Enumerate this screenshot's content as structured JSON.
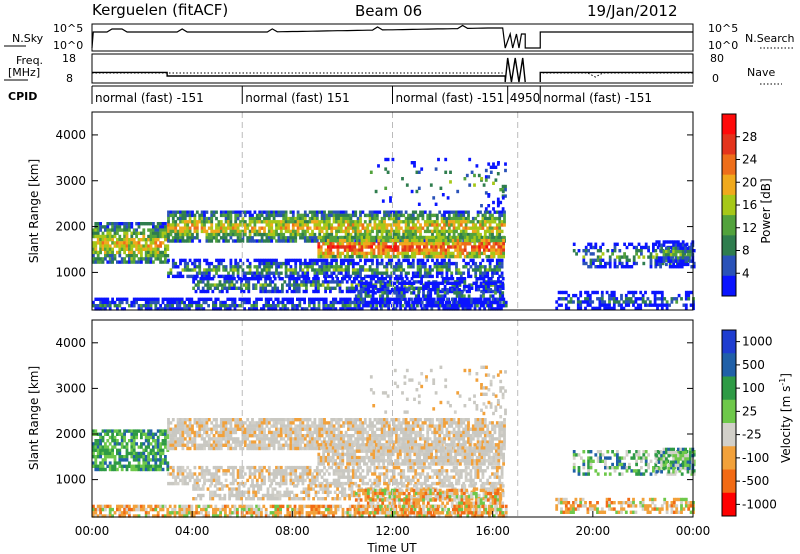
{
  "header": {
    "station": "Kerguelen (fitACF)",
    "beam": "Beam 06",
    "date": "19/Jan/2012"
  },
  "top_panels": {
    "nsky_label": "N.Sky",
    "nsky_ticks": [
      "10^5",
      "10^0"
    ],
    "nsearch_label": "N.Search",
    "nsearch_ticks": [
      "10^5",
      "10^0"
    ],
    "freq_label_line1": "Freq.",
    "freq_label_line2": "[MHz]",
    "freq_ticks": [
      "18",
      "8"
    ],
    "nave_label": "Nave",
    "nave_ticks": [
      "80",
      "0"
    ],
    "cpid_label": "CPID",
    "cpid_segments": [
      {
        "start": 0.0,
        "end": 6.0,
        "label": "normal (fast) -151"
      },
      {
        "start": 6.0,
        "end": 12.0,
        "label": "normal (fast) 151"
      },
      {
        "start": 12.0,
        "end": 16.6,
        "label": "normal (fast) -151"
      },
      {
        "start": 16.6,
        "end": 17.9,
        "label": "4950"
      },
      {
        "start": 17.9,
        "end": 24.0,
        "label": "normal (fast) -151"
      }
    ]
  },
  "time_axis": {
    "label": "Time UT",
    "ticks": [
      "00:00",
      "04:00",
      "08:00",
      "12:00",
      "16:00",
      "20:00",
      "00:00"
    ]
  },
  "colors": {
    "power": [
      "#0a14ff",
      "#2a52b8",
      "#2f7d4e",
      "#52a23c",
      "#a6c818",
      "#f0a91c",
      "#ee6e1a",
      "#e4341c",
      "#ff0a0a"
    ],
    "velocity": [
      "#ff0000",
      "#f26a14",
      "#f2a13a",
      "#d2d0c9",
      "#6ec84a",
      "#2e9a45",
      "#2060a8",
      "#1f3dd0"
    ],
    "grey": "#c9c8c2"
  },
  "chart_data": [
    {
      "type": "heatmap",
      "name": "power",
      "ylabel": "Slant Range [km]",
      "xlabel": "",
      "xlim": [
        0,
        24
      ],
      "ylim": [
        180,
        4500
      ],
      "yticks": [
        "1000",
        "2000",
        "3000",
        "4000"
      ],
      "colorbar_label": "Power [dB]",
      "colorbar_ticks": [
        "4",
        "8",
        "12",
        "16",
        "20",
        "24",
        "28"
      ],
      "colorbar_range": [
        0,
        32
      ]
    },
    {
      "type": "heatmap",
      "name": "velocity",
      "ylabel": "Slant Range [km]",
      "xlabel": "Time UT",
      "xlim": [
        0,
        24
      ],
      "ylim": [
        180,
        4500
      ],
      "yticks": [
        "1000",
        "2000",
        "3000",
        "4000"
      ],
      "colorbar_label": "Velocity [m s^-1]",
      "colorbar_ticks": [
        "1000",
        "500",
        "100",
        "25",
        "-25",
        "-100",
        "-500",
        "-1000"
      ]
    }
  ]
}
